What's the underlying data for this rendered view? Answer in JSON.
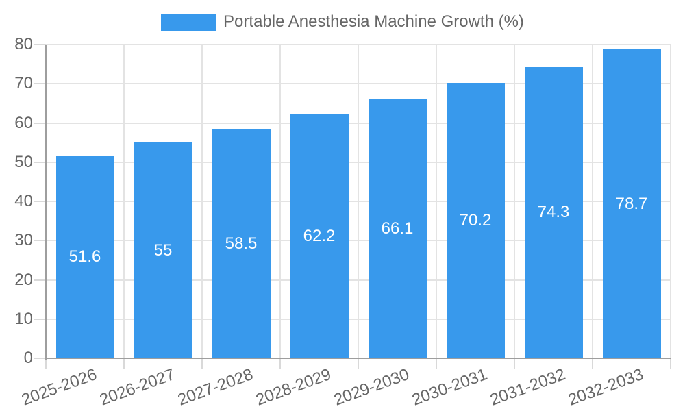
{
  "legend": {
    "label": "Portable Anesthesia Machine Growth (%)"
  },
  "colors": {
    "bar": "#3899ec",
    "axis_text": "#666666",
    "grid": "#e3e3e3",
    "tick": "#d9d9d9",
    "axis_line": "#9e9e9e",
    "bar_label": "#ffffff"
  },
  "chart_data": {
    "type": "bar",
    "title": "",
    "legend": "Portable Anesthesia Machine Growth (%)",
    "legend_position": "top",
    "categories": [
      "2025-2026",
      "2026-2027",
      "2027-2028",
      "2028-2029",
      "2029-2030",
      "2030-2031",
      "2031-2032",
      "2032-2033"
    ],
    "values": [
      51.6,
      55,
      58.5,
      62.2,
      66.1,
      70.2,
      74.3,
      78.7
    ],
    "value_labels": [
      "51.6",
      "55",
      "58.5",
      "62.2",
      "66.1",
      "70.2",
      "74.3",
      "78.7"
    ],
    "xlabel": "",
    "ylabel": "",
    "ylim": [
      0,
      80
    ],
    "ytick_step": 10,
    "grid": true
  }
}
